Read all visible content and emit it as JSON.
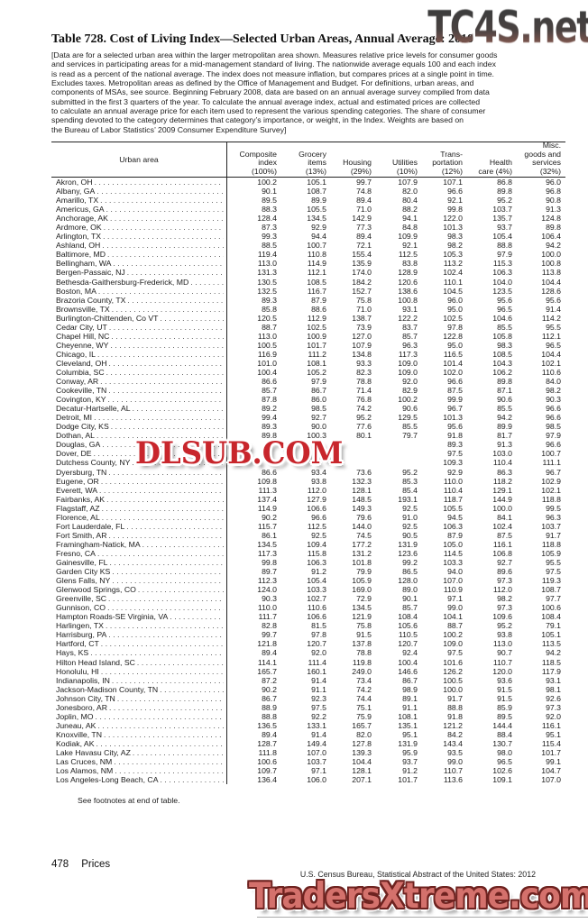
{
  "watermarks": {
    "top": "TC4S.net",
    "middle": "DLSUB.COM",
    "bottom": "TradersXtreme.com"
  },
  "title": "Table 728. Cost of Living Index—Selected Urban Areas, Annual Average: 2010",
  "intro_lines": [
    "[Data are for a selected urban area within the larger metropolitan area shown. Measures relative price levels for consumer goods",
    "and services in participating areas for a mid-management standard of living. The nationwide average equals 100 and each index",
    "is read as a percent of the national average. The index does not measure inflation, but compares prices at a single point in time.",
    "Excludes taxes. Metropolitan areas as defined by the Office of Management and Budget. For definitions, urban areas, and",
    "components of MSAs, see source. Beginning February 2008, data are based on an annual average survey compiled from data",
    "submitted in the first 3 quarters of the year. To calculate the annual average index, actual and estimated prices are collected",
    "to calculate an annual average price for each item used to represent the various spending categories. The share of consumer",
    "spending devoted to the category determines that category’s importance, or weight, in the Index. Weights are based on",
    "the Bureau of Labor Statistics’ 2009 Consumer Expenditure Survey]"
  ],
  "table": {
    "row_header": "Urban area",
    "columns": [
      {
        "id": "composite",
        "lines": [
          "Composite",
          "index",
          "(100%)"
        ]
      },
      {
        "id": "grocery",
        "lines": [
          "Grocery",
          "items",
          "(13%)"
        ]
      },
      {
        "id": "housing",
        "lines": [
          "Housing",
          "(29%)"
        ]
      },
      {
        "id": "utilities",
        "lines": [
          "Utilities",
          "(10%)"
        ]
      },
      {
        "id": "transportation",
        "lines": [
          "Trans-",
          "portation",
          "(12%)"
        ]
      },
      {
        "id": "health",
        "lines": [
          "Health",
          "care (4%)"
        ]
      },
      {
        "id": "misc",
        "lines": [
          "Misc.",
          "goods and",
          "services",
          "(32%)"
        ]
      }
    ],
    "rows": [
      {
        "area": "Akron, OH",
        "values": [
          "100.2",
          "105.1",
          "99.7",
          "107.9",
          "107.1",
          "86.8",
          "96.0"
        ]
      },
      {
        "area": "Albany, GA",
        "values": [
          "90.1",
          "108.7",
          "74.8",
          "82.0",
          "96.6",
          "89.8",
          "96.8"
        ]
      },
      {
        "area": "Amarillo, TX",
        "values": [
          "89.5",
          "89.9",
          "89.4",
          "80.4",
          "92.1",
          "95.2",
          "90.8"
        ]
      },
      {
        "area": "Americus, GA",
        "values": [
          "88.3",
          "105.5",
          "71.0",
          "88.2",
          "99.8",
          "103.7",
          "91.3"
        ]
      },
      {
        "area": "Anchorage, AK",
        "values": [
          "128.4",
          "134.5",
          "142.9",
          "94.1",
          "122.0",
          "135.7",
          "124.8"
        ]
      },
      {
        "area": "Ardmore, OK",
        "values": [
          "87.3",
          "92.9",
          "77.3",
          "84.8",
          "101.3",
          "93.7",
          "89.8"
        ]
      },
      {
        "area": "Arlington, TX",
        "values": [
          "99.3",
          "94.4",
          "89.4",
          "109.9",
          "98.3",
          "105.4",
          "106.4"
        ]
      },
      {
        "area": "Ashland, OH",
        "values": [
          "88.5",
          "100.7",
          "72.1",
          "92.1",
          "98.2",
          "88.8",
          "94.2"
        ]
      },
      {
        "area": "Baltimore, MD",
        "values": [
          "119.4",
          "110.8",
          "155.4",
          "112.5",
          "105.3",
          "97.9",
          "100.0"
        ]
      },
      {
        "area": "Bellingham, WA",
        "values": [
          "113.0",
          "114.9",
          "135.9",
          "83.8",
          "113.2",
          "115.3",
          "100.8"
        ]
      },
      {
        "area": "Bergen-Passaic, NJ",
        "values": [
          "131.3",
          "112.1",
          "174.0",
          "128.9",
          "102.4",
          "106.3",
          "113.8"
        ]
      },
      {
        "area": "Bethesda-Gaithersburg-Frederick, MD",
        "values": [
          "130.5",
          "108.5",
          "184.2",
          "120.6",
          "110.1",
          "104.0",
          "104.4"
        ]
      },
      {
        "area": "Boston, MA",
        "values": [
          "132.5",
          "116.7",
          "152.7",
          "138.6",
          "104.5",
          "123.5",
          "128.6"
        ]
      },
      {
        "area": "Brazoria County, TX",
        "values": [
          "89.3",
          "87.9",
          "75.8",
          "100.8",
          "96.0",
          "95.6",
          "95.6"
        ]
      },
      {
        "area": "Brownsville, TX",
        "values": [
          "85.8",
          "88.6",
          "71.0",
          "93.1",
          "95.0",
          "96.5",
          "91.4"
        ]
      },
      {
        "area": "Burlington-Chittenden, Co VT",
        "values": [
          "120.5",
          "112.9",
          "138.7",
          "122.2",
          "102.5",
          "104.6",
          "114.2"
        ]
      },
      {
        "area": "Cedar City, UT",
        "values": [
          "88.7",
          "102.5",
          "73.9",
          "83.7",
          "97.8",
          "85.5",
          "95.5"
        ]
      },
      {
        "area": "Chapel Hill, NC",
        "values": [
          "113.0",
          "100.9",
          "127.0",
          "85.7",
          "122.8",
          "105.8",
          "112.1"
        ]
      },
      {
        "area": "Cheyenne, WY",
        "values": [
          "100.5",
          "101.7",
          "107.9",
          "96.3",
          "95.0",
          "98.3",
          "96.5"
        ]
      },
      {
        "area": "Chicago, IL",
        "values": [
          "116.9",
          "111.2",
          "134.8",
          "117.3",
          "116.5",
          "108.5",
          "104.4"
        ]
      },
      {
        "area": "Cleveland, OH",
        "values": [
          "101.0",
          "108.1",
          "93.3",
          "109.0",
          "101.4",
          "104.3",
          "102.1"
        ]
      },
      {
        "area": "Columbia, SC",
        "values": [
          "100.4",
          "105.2",
          "82.3",
          "109.0",
          "102.0",
          "106.2",
          "110.6"
        ]
      },
      {
        "area": "Conway, AR",
        "values": [
          "86.6",
          "97.9",
          "78.8",
          "92.0",
          "96.6",
          "89.8",
          "84.0"
        ]
      },
      {
        "area": "Cookeville, TN",
        "values": [
          "85.7",
          "86.7",
          "71.4",
          "82.9",
          "87.5",
          "87.1",
          "98.2"
        ]
      },
      {
        "area": "Covington, KY",
        "values": [
          "87.8",
          "86.0",
          "76.8",
          "100.2",
          "99.9",
          "90.6",
          "90.3"
        ]
      },
      {
        "area": "Decatur-Hartselle, AL",
        "values": [
          "89.2",
          "98.5",
          "74.2",
          "90.6",
          "96.7",
          "85.5",
          "96.6"
        ]
      },
      {
        "area": "Detroit, MI",
        "values": [
          "99.4",
          "92.7",
          "95.2",
          "129.5",
          "101.3",
          "94.2",
          "96.6"
        ]
      },
      {
        "area": "Dodge City, KS",
        "values": [
          "89.3",
          "90.0",
          "77.6",
          "85.5",
          "95.6",
          "89.9",
          "98.5"
        ]
      },
      {
        "area": "Dothan, AL",
        "values": [
          "89.8",
          "100.3",
          "80.1",
          "79.7",
          "91.8",
          "81.7",
          "97.9"
        ]
      },
      {
        "area": "Douglas, GA",
        "values": [
          "",
          "",
          "",
          "",
          "89.3",
          "91.3",
          "96.6"
        ]
      },
      {
        "area": "Dover, DE",
        "values": [
          "",
          "",
          "",
          "",
          "97.5",
          "103.0",
          "100.7"
        ]
      },
      {
        "area": "Dutchess County, NY",
        "values": [
          "",
          "",
          "",
          "",
          "109.3",
          "110.4",
          "111.1"
        ]
      },
      {
        "area": "Dyersburg, TN",
        "values": [
          "86.6",
          "93.4",
          "73.6",
          "95.2",
          "92.9",
          "86.3",
          "96.7"
        ]
      },
      {
        "area": "Eugene, OR",
        "values": [
          "109.8",
          "93.8",
          "132.3",
          "85.3",
          "110.0",
          "118.2",
          "102.9"
        ]
      },
      {
        "area": "Everett, WA",
        "values": [
          "111.3",
          "112.0",
          "128.1",
          "85.4",
          "110.4",
          "129.1",
          "102.1"
        ]
      },
      {
        "area": "Fairbanks, AK",
        "values": [
          "137.4",
          "127.9",
          "148.5",
          "193.1",
          "118.7",
          "144.9",
          "118.8"
        ]
      },
      {
        "area": "Flagstaff, AZ",
        "values": [
          "114.9",
          "106.6",
          "149.3",
          "92.5",
          "105.5",
          "100.0",
          "99.5"
        ]
      },
      {
        "area": "Florence, AL",
        "values": [
          "90.2",
          "96.6",
          "79.6",
          "91.0",
          "94.5",
          "84.1",
          "96.3"
        ]
      },
      {
        "area": "Fort Lauderdale, FL",
        "values": [
          "115.7",
          "112.5",
          "144.0",
          "92.5",
          "106.3",
          "102.4",
          "103.7"
        ]
      },
      {
        "area": "Fort Smith, AR",
        "values": [
          "86.1",
          "92.5",
          "74.5",
          "90.5",
          "87.9",
          "87.5",
          "91.7"
        ]
      },
      {
        "area": "Framingham-Natick, MA",
        "values": [
          "134.5",
          "109.4",
          "177.2",
          "131.9",
          "105.0",
          "116.1",
          "118.8"
        ]
      },
      {
        "area": "Fresno, CA",
        "values": [
          "117.3",
          "115.8",
          "131.2",
          "123.6",
          "114.5",
          "106.8",
          "105.9"
        ]
      },
      {
        "area": "Gainesville, FL",
        "values": [
          "99.8",
          "106.3",
          "101.8",
          "99.2",
          "103.3",
          "92.7",
          "95.5"
        ]
      },
      {
        "area": "Garden City KS",
        "values": [
          "89.7",
          "91.2",
          "79.9",
          "86.5",
          "94.0",
          "89.6",
          "97.5"
        ]
      },
      {
        "area": "Glens Falls, NY",
        "values": [
          "112.3",
          "105.4",
          "105.9",
          "128.0",
          "107.0",
          "97.3",
          "119.3"
        ]
      },
      {
        "area": "Glenwood Springs, CO",
        "values": [
          "124.0",
          "103.3",
          "169.0",
          "89.0",
          "110.9",
          "112.0",
          "108.7"
        ]
      },
      {
        "area": "Greenville, SC",
        "values": [
          "90.3",
          "102.7",
          "72.9",
          "90.1",
          "97.1",
          "98.2",
          "97.7"
        ]
      },
      {
        "area": "Gunnison, CO",
        "values": [
          "110.0",
          "110.6",
          "134.5",
          "85.7",
          "99.0",
          "97.3",
          "100.6"
        ]
      },
      {
        "area": "Hampton Roads-SE Virginia, VA",
        "values": [
          "111.7",
          "106.6",
          "121.9",
          "108.4",
          "104.1",
          "109.6",
          "108.4"
        ]
      },
      {
        "area": "Harlingen, TX",
        "values": [
          "82.8",
          "81.5",
          "75.8",
          "105.6",
          "88.7",
          "95.2",
          "79.1"
        ]
      },
      {
        "area": "Harrisburg, PA",
        "values": [
          "99.7",
          "97.8",
          "91.5",
          "110.5",
          "100.2",
          "93.8",
          "105.1"
        ]
      },
      {
        "area": "Hartford, CT",
        "values": [
          "121.8",
          "120.7",
          "137.8",
          "120.7",
          "109.0",
          "113.0",
          "113.5"
        ]
      },
      {
        "area": "Hays, KS",
        "values": [
          "89.4",
          "92.0",
          "78.8",
          "92.4",
          "97.5",
          "90.7",
          "94.2"
        ]
      },
      {
        "area": "Hilton Head Island, SC",
        "values": [
          "114.1",
          "111.4",
          "119.8",
          "100.4",
          "101.6",
          "110.7",
          "118.5"
        ]
      },
      {
        "area": "Honolulu, HI",
        "values": [
          "165.7",
          "160.1",
          "249.0",
          "146.6",
          "126.2",
          "120.0",
          "117.9"
        ]
      },
      {
        "area": "Indianapolis, IN",
        "values": [
          "87.2",
          "91.4",
          "73.4",
          "86.7",
          "100.5",
          "93.6",
          "93.1"
        ]
      },
      {
        "area": "Jackson-Madison County, TN",
        "values": [
          "90.2",
          "91.1",
          "74.2",
          "98.9",
          "100.0",
          "91.5",
          "98.1"
        ]
      },
      {
        "area": "Johnson City, TN",
        "values": [
          "86.7",
          "92.3",
          "74.4",
          "89.1",
          "91.7",
          "91.5",
          "92.6"
        ]
      },
      {
        "area": "Jonesboro, AR",
        "values": [
          "88.9",
          "97.5",
          "75.1",
          "91.1",
          "88.8",
          "85.9",
          "97.3"
        ]
      },
      {
        "area": "Joplin, MO",
        "values": [
          "88.8",
          "92.2",
          "75.9",
          "108.1",
          "91.8",
          "89.5",
          "92.0"
        ]
      },
      {
        "area": "Juneau, AK",
        "values": [
          "136.5",
          "133.1",
          "165.7",
          "135.1",
          "121.2",
          "144.4",
          "116.1"
        ]
      },
      {
        "area": "Knoxville, TN",
        "values": [
          "89.4",
          "91.4",
          "82.0",
          "95.1",
          "84.2",
          "88.4",
          "95.1"
        ]
      },
      {
        "area": "Kodiak, AK",
        "values": [
          "128.7",
          "149.4",
          "127.8",
          "131.9",
          "143.4",
          "130.7",
          "115.4"
        ]
      },
      {
        "area": "Lake Havasu City, AZ",
        "values": [
          "111.8",
          "107.0",
          "139.3",
          "95.9",
          "93.5",
          "98.0",
          "101.7"
        ]
      },
      {
        "area": "Las Cruces, NM",
        "values": [
          "100.6",
          "103.7",
          "104.4",
          "93.7",
          "99.0",
          "96.5",
          "99.1"
        ]
      },
      {
        "area": "Los Alamos, NM",
        "values": [
          "109.7",
          "97.1",
          "128.1",
          "91.2",
          "110.7",
          "102.6",
          "104.7"
        ]
      },
      {
        "area": "Los Angeles-Long Beach, CA",
        "values": [
          "136.4",
          "106.0",
          "207.1",
          "101.7",
          "113.6",
          "109.1",
          "107.0"
        ]
      }
    ]
  },
  "footnote": "See footnotes at end of table.",
  "footer": {
    "page_number": "478",
    "section": "Prices",
    "source": "U.S. Census Bureau, Statistical Abstract of the United States: 2012"
  }
}
